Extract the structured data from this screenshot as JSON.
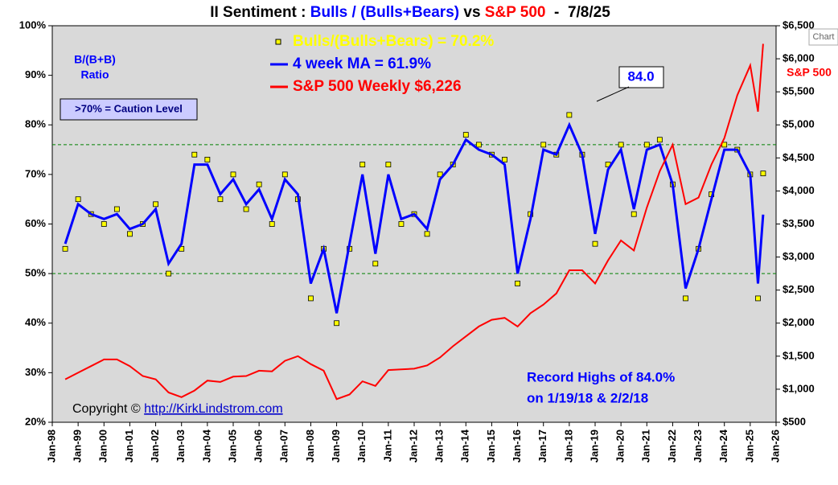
{
  "chart_data": {
    "type": "line",
    "title": {
      "prefix": "II Sentiment : ",
      "bulls": "Bulls / (Bulls+Bears)",
      "vs": " vs ",
      "sp": "S&P 500",
      "date": "  -  7/8/25"
    },
    "annotations": {
      "ratio1": "B/(B+B)",
      "ratio2": "Ratio",
      "caution": ">70% = Caution Level",
      "peak": "84.0",
      "record1": "Record Highs of 84.0%",
      "record2": "on 1/19/18 & 2/2/18",
      "copyright": "Copyright © ",
      "url": "http://KirkLindstrom.com",
      "y2label": "S&P 500",
      "chart": "Chart"
    },
    "x": [
      1998.5,
      1999,
      1999.5,
      2000,
      2000.5,
      2001,
      2001.5,
      2002,
      2002.5,
      2003,
      2003.5,
      2004,
      2004.5,
      2005,
      2005.5,
      2006,
      2006.5,
      2007,
      2007.5,
      2008,
      2008.5,
      2009,
      2009.5,
      2010,
      2010.5,
      2011,
      2011.5,
      2012,
      2012.5,
      2013,
      2013.5,
      2014,
      2014.5,
      2015,
      2015.5,
      2016,
      2016.5,
      2017,
      2017.5,
      2018,
      2018.5,
      2019,
      2019.5,
      2020,
      2020.5,
      2021,
      2021.5,
      2022,
      2022.5,
      2023,
      2023.5,
      2024,
      2024.5,
      2025,
      2025.3,
      2025.5
    ],
    "series": [
      {
        "name": "Bulls/(Bulls+Bears) = 70.2%",
        "color": "#ffff00",
        "marker": true,
        "values": [
          55,
          65,
          62,
          60,
          63,
          58,
          60,
          64,
          50,
          55,
          74,
          73,
          65,
          70,
          63,
          68,
          60,
          70,
          65,
          45,
          55,
          40,
          55,
          72,
          52,
          72,
          60,
          62,
          58,
          70,
          72,
          78,
          76,
          74,
          73,
          48,
          62,
          76,
          74,
          82,
          74,
          56,
          72,
          76,
          62,
          76,
          77,
          68,
          45,
          55,
          66,
          76,
          75,
          70,
          45,
          70.2
        ]
      },
      {
        "name": "4 week MA = 61.9%",
        "color": "#0000ff",
        "values": [
          56,
          64,
          62,
          61,
          62,
          59,
          60,
          63,
          52,
          56,
          72,
          72,
          66,
          69,
          64,
          67,
          61,
          69,
          66,
          48,
          55,
          42,
          56,
          70,
          54,
          70,
          61,
          62,
          59,
          69,
          72,
          77,
          75,
          74,
          72,
          50,
          61,
          75,
          74,
          80,
          74,
          58,
          71,
          75,
          63,
          75,
          76,
          68,
          47,
          55,
          65,
          75,
          75,
          70,
          48,
          61.9
        ]
      },
      {
        "name": "S&P 500 Weekly $6,226",
        "color": "#ff0000",
        "axis": "y2",
        "values": [
          1150,
          1250,
          1350,
          1450,
          1450,
          1350,
          1200,
          1150,
          950,
          880,
          980,
          1130,
          1110,
          1190,
          1200,
          1280,
          1270,
          1430,
          1500,
          1380,
          1280,
          850,
          920,
          1120,
          1050,
          1290,
          1300,
          1310,
          1360,
          1480,
          1650,
          1800,
          1950,
          2050,
          2080,
          1950,
          2150,
          2280,
          2450,
          2800,
          2800,
          2600,
          2950,
          3250,
          3100,
          3750,
          4300,
          4700,
          3800,
          3900,
          4400,
          4800,
          5450,
          5900,
          5200,
          6226
        ]
      }
    ],
    "reference_lines": [
      50,
      76
    ],
    "xlim": [
      1998,
      2026
    ],
    "xticks": [
      {
        "value": 1998,
        "label": "Jan-98"
      },
      {
        "value": 1999,
        "label": "Jan-99"
      },
      {
        "value": 2000,
        "label": "Jan-00"
      },
      {
        "value": 2001,
        "label": "Jan-01"
      },
      {
        "value": 2002,
        "label": "Jan-02"
      },
      {
        "value": 2003,
        "label": "Jan-03"
      },
      {
        "value": 2004,
        "label": "Jan-04"
      },
      {
        "value": 2005,
        "label": "Jan-05"
      },
      {
        "value": 2006,
        "label": "Jan-06"
      },
      {
        "value": 2007,
        "label": "Jan-07"
      },
      {
        "value": 2008,
        "label": "Jan-08"
      },
      {
        "value": 2009,
        "label": "Jan-09"
      },
      {
        "value": 2010,
        "label": "Jan-10"
      },
      {
        "value": 2011,
        "label": "Jan-11"
      },
      {
        "value": 2012,
        "label": "Jan-12"
      },
      {
        "value": 2013,
        "label": "Jan-13"
      },
      {
        "value": 2014,
        "label": "Jan-14"
      },
      {
        "value": 2015,
        "label": "Jan-15"
      },
      {
        "value": 2016,
        "label": "Jan-16"
      },
      {
        "value": 2017,
        "label": "Jan-17"
      },
      {
        "value": 2018,
        "label": "Jan-18"
      },
      {
        "value": 2019,
        "label": "Jan-19"
      },
      {
        "value": 2020,
        "label": "Jan-20"
      },
      {
        "value": 2021,
        "label": "Jan-21"
      },
      {
        "value": 2022,
        "label": "Jan-22"
      },
      {
        "value": 2023,
        "label": "Jan-23"
      },
      {
        "value": 2024,
        "label": "Jan-24"
      },
      {
        "value": 2025,
        "label": "Jan-25"
      },
      {
        "value": 2026,
        "label": "Jan-26"
      }
    ],
    "ylim": [
      20,
      100
    ],
    "yticks": [
      {
        "value": 20,
        "label": "20%"
      },
      {
        "value": 30,
        "label": "30%"
      },
      {
        "value": 40,
        "label": "40%"
      },
      {
        "value": 50,
        "label": "50%"
      },
      {
        "value": 60,
        "label": "60%"
      },
      {
        "value": 70,
        "label": "70%"
      },
      {
        "value": 80,
        "label": "80%"
      },
      {
        "value": 90,
        "label": "90%"
      },
      {
        "value": 100,
        "label": "100%"
      }
    ],
    "y2lim": [
      500,
      6500
    ],
    "y2ticks": [
      {
        "value": 500,
        "label": "$500"
      },
      {
        "value": 1000,
        "label": "$1,000"
      },
      {
        "value": 1500,
        "label": "$1,500"
      },
      {
        "value": 2000,
        "label": "$2,000"
      },
      {
        "value": 2500,
        "label": "$2,500"
      },
      {
        "value": 3000,
        "label": "$3,000"
      },
      {
        "value": 3500,
        "label": "$3,500"
      },
      {
        "value": 4000,
        "label": "$4,000"
      },
      {
        "value": 4500,
        "label": "$4,500"
      },
      {
        "value": 5000,
        "label": "$5,000"
      },
      {
        "value": 5500,
        "label": "$5,500"
      },
      {
        "value": 6000,
        "label": "$6,000"
      },
      {
        "value": 6500,
        "label": "$6,500"
      }
    ]
  }
}
